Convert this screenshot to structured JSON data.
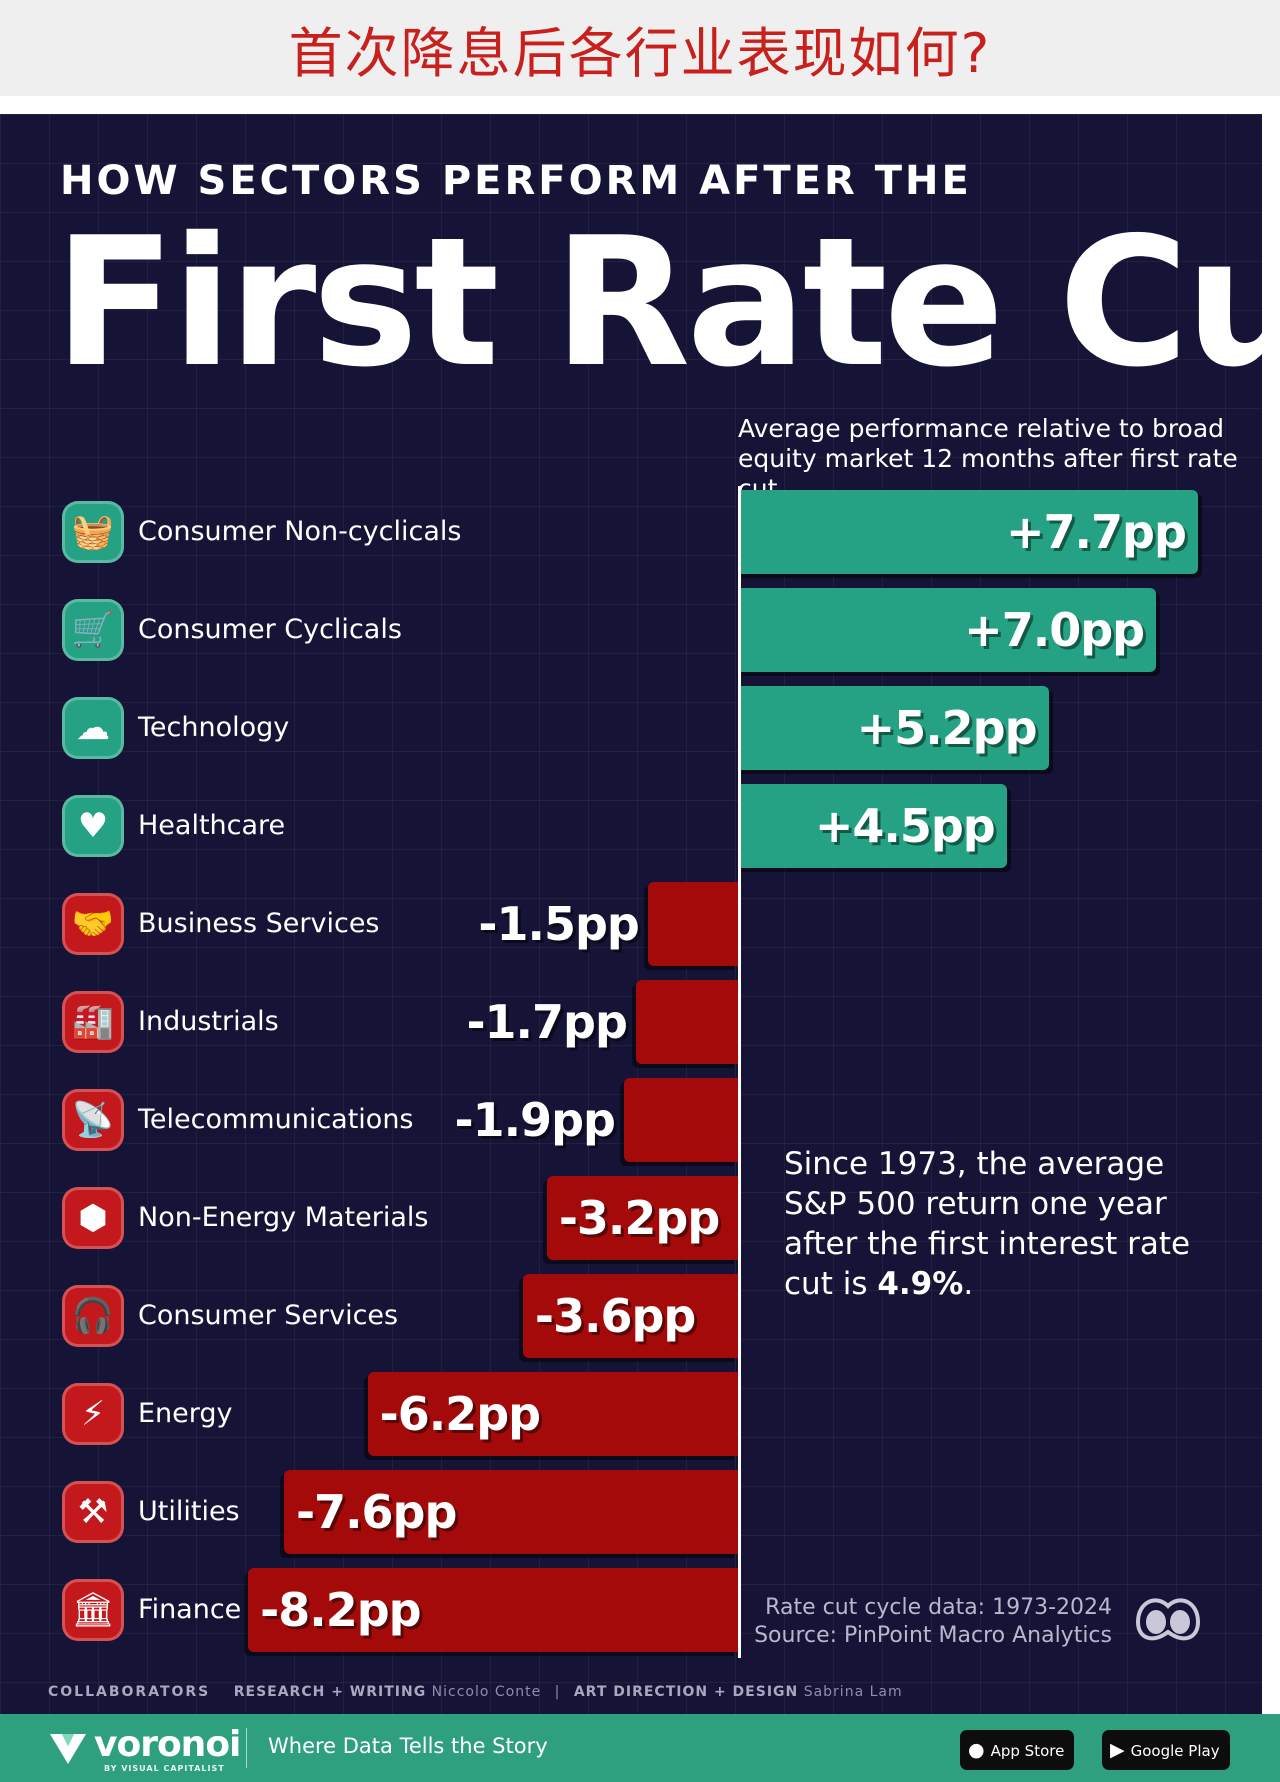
{
  "banner": {
    "text": "首次降息后各行业表现如何?"
  },
  "header": {
    "kicker": "HOW SECTORS PERFORM AFTER THE",
    "title": "First Rate Cut",
    "subtitle": "Average performance relative to broad equity market 12 months after first rate cut"
  },
  "chart_data": {
    "type": "bar",
    "orientation": "horizontal",
    "title": "First Rate Cut",
    "subtitle": "Average performance relative to broad equity market 12 months after first rate cut",
    "unit": "pp",
    "colors": {
      "positive": "#24a283",
      "negative": "#a50a0b"
    },
    "categories": [
      "Consumer Non-cyclicals",
      "Consumer Cyclicals",
      "Technology",
      "Healthcare",
      "Business Services",
      "Industrials",
      "Telecommunications",
      "Non-Energy Materials",
      "Consumer Services",
      "Energy",
      "Utilities",
      "Finance"
    ],
    "values": [
      7.7,
      7.0,
      5.2,
      4.5,
      -1.5,
      -1.7,
      -1.9,
      -3.2,
      -3.6,
      -6.2,
      -7.6,
      -8.2
    ],
    "value_labels": [
      "+7.7pp",
      "+7.0pp",
      "+5.2pp",
      "+4.5pp",
      "-1.5pp",
      "-1.7pp",
      "-1.9pp",
      "-3.2pp",
      "-3.6pp",
      "-6.2pp",
      "-7.6pp",
      "-8.2pp"
    ],
    "icons": [
      "basket-icon",
      "shopping-cart-icon",
      "cloud-network-icon",
      "heart-plus-icon",
      "handshake-icon",
      "factory-icon",
      "antenna-tower-icon",
      "cube-icon",
      "headset-gear-icon",
      "lightning-icon",
      "wrench-hammer-icon",
      "bank-icon"
    ],
    "icon_glyphs": [
      "🧺",
      "🛒",
      "☁",
      "♥",
      "🤝",
      "🏭",
      "📡",
      "⬢",
      "🎧",
      "⚡",
      "⚒",
      "🏛"
    ],
    "xlim": [
      -8.2,
      7.7
    ],
    "grid": true
  },
  "note": {
    "text": "Since 1973, the average S&P 500 return one year after the first interest rate cut is ",
    "highlight": "4.9%",
    "end": "."
  },
  "source": {
    "line1": "Rate cut cycle data: 1973-2024",
    "line2": "Source: PinPoint Macro Analytics"
  },
  "credits": {
    "lead": "COLLABORATORS",
    "research_role": "RESEARCH + WRITING",
    "research_name": "Niccolo Conte",
    "design_role": "ART DIRECTION + DESIGN",
    "design_name": "Sabrina Lam"
  },
  "footer": {
    "brand": "voronoi",
    "brand_sub": "BY VISUAL CAPITALIST",
    "tagline": "Where Data Tells the Story",
    "app_store": "App Store",
    "google_play": "Google Play"
  }
}
